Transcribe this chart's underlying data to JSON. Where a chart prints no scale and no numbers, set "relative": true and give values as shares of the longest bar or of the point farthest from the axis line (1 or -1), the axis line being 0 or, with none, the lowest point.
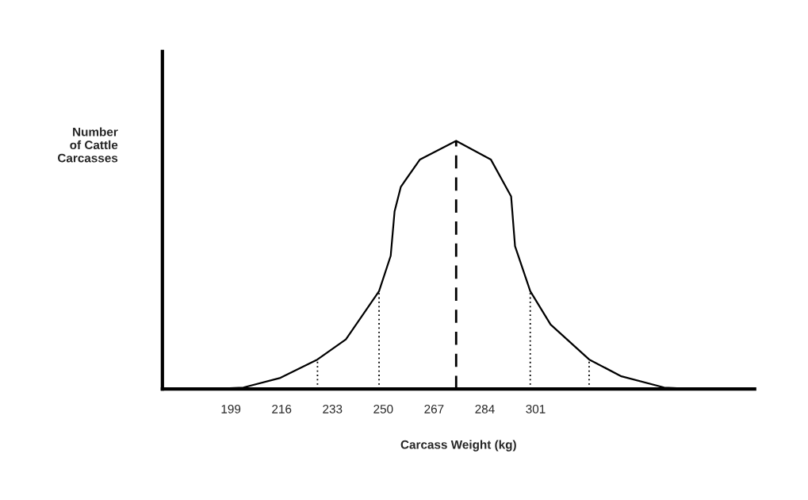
{
  "chart_data": {
    "type": "line",
    "relative": true,
    "xlabel": "Carcass Weight (kg)",
    "ylabel": "Number\nof Cattle\nCarcasses",
    "x": [
      192.4,
      203.2,
      215.6,
      228.0,
      237.5,
      248.6,
      252.5,
      253.8,
      255.9,
      262.3,
      274.4,
      286.0,
      292.8,
      294.1,
      299.2,
      306.0,
      318.9,
      329.7,
      344.0,
      354.2
    ],
    "series": [
      {
        "color": "#000000",
        "values": [
          0,
          0.006,
          0.045,
          0.119,
          0.2,
          0.394,
          0.537,
          0.716,
          0.815,
          0.925,
          1,
          0.925,
          0.776,
          0.576,
          0.394,
          0.26,
          0.119,
          0.051,
          0.006,
          0
        ]
      }
    ],
    "xlim": [
      176.1,
      374.3
    ],
    "xticks": [
      199,
      216,
      233,
      250,
      267,
      284,
      301
    ],
    "ref_lines": [
      {
        "axis": "x",
        "value": 228.0,
        "line_style": "dotted",
        "color": "#000000"
      },
      {
        "axis": "x",
        "value": 248.6,
        "line_style": "dotted",
        "color": "#000000"
      },
      {
        "axis": "x",
        "value": 274.4,
        "line_style": "dashed",
        "color": "#000000"
      },
      {
        "axis": "x",
        "value": 299.2,
        "line_style": "dotted",
        "color": "#000000"
      },
      {
        "axis": "x",
        "value": 318.9,
        "line_style": "dotted",
        "color": "#000000"
      }
    ],
    "grid": false,
    "legend": false,
    "line_style": "solid",
    "marker": "none"
  }
}
